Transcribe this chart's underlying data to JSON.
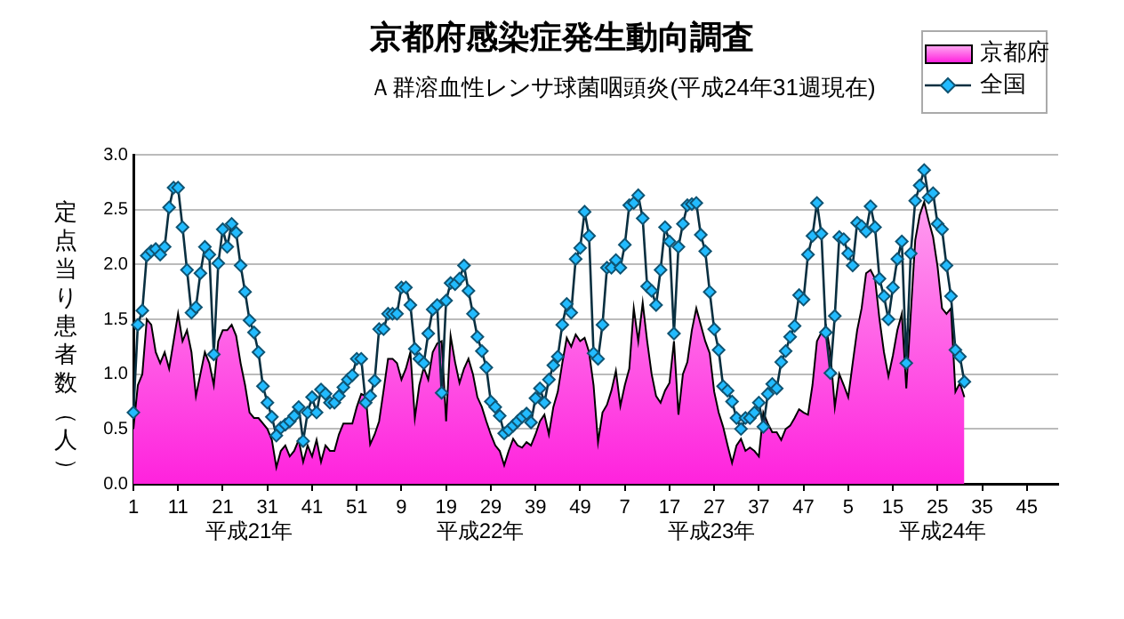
{
  "chart_data": {
    "type": "area",
    "title": "京都府感染症発生動向調査",
    "subtitle": "Ａ群溶血性レンサ球菌咽頭炎(平成24年31週現在)",
    "ylabel": "定点当り患者数（人）",
    "categories": [
      "1",
      null,
      null,
      null,
      null,
      null,
      null,
      null,
      null,
      null,
      "11",
      null,
      null,
      null,
      null,
      null,
      null,
      null,
      null,
      null,
      "21",
      null,
      null,
      null,
      null,
      null,
      null,
      null,
      null,
      null,
      "31",
      null,
      null,
      null,
      null,
      null,
      null,
      null,
      null,
      null,
      "41",
      null,
      null,
      null,
      null,
      null,
      null,
      null,
      null,
      null,
      "51",
      null,
      null,
      null,
      null,
      null,
      null,
      null,
      null,
      null,
      "9",
      null,
      null,
      null,
      null,
      null,
      null,
      null,
      null,
      null,
      "19",
      null,
      null,
      null,
      null,
      null,
      null,
      null,
      null,
      null,
      "29",
      null,
      null,
      null,
      null,
      null,
      null,
      null,
      null,
      null,
      "39",
      null,
      null,
      null,
      null,
      null,
      null,
      null,
      null,
      null,
      "49",
      null,
      null,
      null,
      null,
      null,
      null,
      null,
      null,
      null,
      "7",
      null,
      null,
      null,
      null,
      null,
      null,
      null,
      null,
      null,
      "17",
      null,
      null,
      null,
      null,
      null,
      null,
      null,
      null,
      null,
      "27",
      null,
      null,
      null,
      null,
      null,
      null,
      null,
      null,
      null,
      "37",
      null,
      null,
      null,
      null,
      null,
      null,
      null,
      null,
      null,
      "47",
      null,
      null,
      null,
      null,
      null,
      null,
      null,
      null,
      null,
      "5",
      null,
      null,
      null,
      null,
      null,
      null,
      null,
      null,
      null,
      "15",
      null,
      null,
      null,
      null,
      null,
      null,
      null,
      null,
      null,
      "25",
      null,
      null,
      null,
      null,
      null,
      null,
      null,
      null,
      null,
      "35",
      null,
      null,
      null,
      null,
      null,
      null,
      null,
      null,
      null,
      "45",
      null,
      null,
      null,
      null,
      null,
      null,
      null
    ],
    "series": [
      {
        "name": "京都府",
        "color": "#ff22dd",
        "values": [
          0.5,
          0.9,
          1.0,
          1.5,
          1.45,
          1.2,
          1.1,
          1.2,
          1.05,
          1.3,
          1.55,
          1.3,
          1.4,
          1.2,
          0.8,
          1.0,
          1.2,
          1.1,
          0.9,
          1.3,
          1.4,
          1.4,
          1.45,
          1.35,
          1.1,
          0.9,
          0.65,
          0.6,
          0.6,
          0.55,
          0.5,
          0.4,
          0.15,
          0.3,
          0.35,
          0.25,
          0.3,
          0.4,
          0.2,
          0.35,
          0.25,
          0.4,
          0.2,
          0.35,
          0.3,
          0.3,
          0.45,
          0.55,
          0.55,
          0.55,
          0.7,
          0.82,
          0.8,
          0.36,
          0.45,
          0.57,
          0.85,
          1.14,
          1.14,
          1.1,
          0.95,
          1.05,
          1.2,
          0.6,
          0.9,
          1.06,
          0.95,
          1.2,
          1.28,
          1.3,
          0.57,
          1.35,
          1.11,
          0.92,
          1.05,
          1.14,
          1.0,
          0.79,
          0.7,
          0.57,
          0.45,
          0.35,
          0.3,
          0.17,
          0.3,
          0.41,
          0.35,
          0.33,
          0.38,
          0.35,
          0.45,
          0.57,
          0.63,
          0.45,
          0.7,
          0.84,
          1.1,
          1.33,
          1.25,
          1.36,
          1.3,
          1.33,
          1.2,
          0.9,
          0.38,
          0.65,
          0.72,
          0.85,
          1.03,
          0.71,
          0.9,
          1.05,
          1.6,
          1.3,
          1.65,
          1.3,
          1.0,
          0.8,
          0.74,
          0.85,
          0.92,
          1.3,
          0.63,
          1.0,
          1.11,
          1.4,
          1.6,
          1.45,
          1.3,
          1.19,
          0.84,
          0.65,
          0.52,
          0.35,
          0.19,
          0.35,
          0.41,
          0.3,
          0.33,
          0.3,
          0.25,
          0.65,
          0.55,
          0.47,
          0.47,
          0.4,
          0.5,
          0.53,
          0.6,
          0.68,
          0.65,
          0.63,
          0.9,
          1.3,
          1.38,
          1.44,
          1.2,
          0.7,
          1.0,
          0.9,
          0.79,
          1.1,
          1.4,
          1.6,
          1.92,
          1.95,
          1.87,
          1.5,
          1.2,
          0.98,
          1.17,
          1.4,
          1.55,
          0.87,
          1.55,
          2.22,
          2.45,
          2.57,
          2.4,
          2.25,
          1.98,
          1.6,
          1.55,
          1.6,
          0.84,
          0.92,
          0.79,
          null,
          null,
          null,
          null,
          null,
          null,
          null,
          null,
          null,
          null,
          null,
          null,
          null,
          null,
          null,
          null,
          null,
          null,
          null,
          null,
          null
        ]
      },
      {
        "name": "全国",
        "type": "line",
        "marker": "diamond",
        "color": "#22bbff",
        "values": [
          0.65,
          1.45,
          1.58,
          2.08,
          2.12,
          2.14,
          2.09,
          2.16,
          2.52,
          2.7,
          2.7,
          2.34,
          1.95,
          1.56,
          1.61,
          1.92,
          2.16,
          2.09,
          1.18,
          2.01,
          2.32,
          2.16,
          2.37,
          2.29,
          1.99,
          1.75,
          1.49,
          1.38,
          1.2,
          0.89,
          0.74,
          0.61,
          0.44,
          0.51,
          0.54,
          0.57,
          0.62,
          0.7,
          0.39,
          0.65,
          0.79,
          0.65,
          0.86,
          0.82,
          0.74,
          0.74,
          0.8,
          0.88,
          0.95,
          0.99,
          1.14,
          1.14,
          0.74,
          0.8,
          0.94,
          1.41,
          1.41,
          1.55,
          1.55,
          1.55,
          1.79,
          1.79,
          1.63,
          1.23,
          1.14,
          1.1,
          1.37,
          1.59,
          1.63,
          0.83,
          1.67,
          1.83,
          1.82,
          1.87,
          1.99,
          1.76,
          1.55,
          1.34,
          1.21,
          1.06,
          0.75,
          0.7,
          0.62,
          0.46,
          0.49,
          0.53,
          0.57,
          0.61,
          0.64,
          0.56,
          0.78,
          0.87,
          0.74,
          0.95,
          1.08,
          1.16,
          1.45,
          1.64,
          1.56,
          2.05,
          2.15,
          2.48,
          2.26,
          1.19,
          1.14,
          1.45,
          1.97,
          1.97,
          2.04,
          1.97,
          2.18,
          2.54,
          2.56,
          2.63,
          2.42,
          1.8,
          1.76,
          1.63,
          1.95,
          2.34,
          2.21,
          1.37,
          2.16,
          2.37,
          2.54,
          2.55,
          2.56,
          2.27,
          2.12,
          1.75,
          1.41,
          1.22,
          0.89,
          0.85,
          0.75,
          0.6,
          0.5,
          0.6,
          0.6,
          0.65,
          0.74,
          0.52,
          0.82,
          0.91,
          0.87,
          1.11,
          1.21,
          1.34,
          1.44,
          1.72,
          1.68,
          2.09,
          2.26,
          2.56,
          2.28,
          1.38,
          1.01,
          1.53,
          2.25,
          2.23,
          2.1,
          1.99,
          2.38,
          2.35,
          2.3,
          2.53,
          2.34,
          1.87,
          1.71,
          1.5,
          1.79,
          2.05,
          2.21,
          1.1,
          2.1,
          2.58,
          2.72,
          2.86,
          2.61,
          2.65,
          2.37,
          2.32,
          1.99,
          1.71,
          1.22,
          1.16,
          0.93,
          null,
          null,
          null,
          null,
          null,
          null,
          null,
          null,
          null,
          null,
          null,
          null,
          null,
          null,
          null,
          null,
          null,
          null,
          null,
          null,
          null
        ]
      }
    ],
    "ylim": [
      0,
      3
    ],
    "yticks": [
      {
        "value": 0,
        "label": "0.0"
      },
      0.5,
      {
        "value": 1,
        "label": "1.0"
      },
      1.5,
      {
        "value": 2,
        "label": "2.0"
      },
      2.5,
      {
        "value": 3,
        "label": "3.0"
      }
    ],
    "grid": "y",
    "legend": "top right",
    "line_style": "solid",
    "annotations": [
      "平成21年",
      "平成22年",
      "平成23年",
      "平成24年"
    ]
  }
}
